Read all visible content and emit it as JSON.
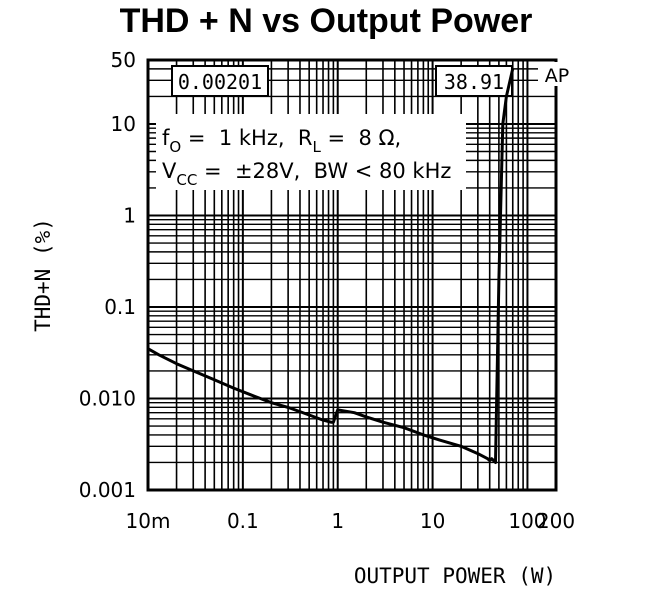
{
  "chart_data": {
    "type": "line",
    "title": "THD + N vs Output Power",
    "xlabel": "OUTPUT POWER (W)",
    "ylabel": "THD+N (%)",
    "x_scale": "log",
    "y_scale": "log",
    "xlim": [
      0.01,
      200
    ],
    "ylim": [
      0.001,
      50
    ],
    "x_tick_labels": [
      "10m",
      "0.1",
      "1",
      "10",
      "100",
      "200"
    ],
    "x_tick_values": [
      0.01,
      0.1,
      1,
      10,
      100,
      200
    ],
    "y_tick_labels": [
      "0.001",
      "0.010",
      "0.1",
      "1",
      "10",
      "50"
    ],
    "y_tick_values": [
      0.001,
      0.01,
      0.1,
      1,
      10,
      50
    ],
    "grid": true,
    "series": [
      {
        "x": [
          0.01,
          0.013,
          0.02,
          0.03,
          0.05,
          0.08,
          0.12,
          0.2,
          0.3,
          0.5,
          0.7,
          0.85,
          0.9,
          0.95,
          1.0,
          1.5,
          2,
          3,
          5,
          8,
          12,
          20,
          30,
          38,
          40,
          42,
          44,
          46,
          50,
          55,
          60,
          70
        ],
        "y": [
          0.035,
          0.03,
          0.024,
          0.02,
          0.016,
          0.013,
          0.011,
          0.009,
          0.008,
          0.0066,
          0.0058,
          0.0055,
          0.0055,
          0.0065,
          0.0075,
          0.007,
          0.0063,
          0.0055,
          0.0048,
          0.004,
          0.0035,
          0.003,
          0.0025,
          0.0022,
          0.0021,
          0.0022,
          0.0021,
          0.002,
          0.2,
          10,
          20,
          40
        ]
      }
    ],
    "annotations": {
      "readout_left": "0.00201",
      "readout_right": "38.91",
      "badge": "AP",
      "conditions_line1": {
        "f": "f",
        "f_sub": "O",
        "f_val": " =  1 kHz,  R",
        "r_sub": "L",
        "r_val": " =  8 Ω,"
      },
      "conditions_line2": {
        "v": "V",
        "v_sub": "CC",
        "v_val": " =  ±28V,  BW < 80 kHz"
      }
    }
  }
}
